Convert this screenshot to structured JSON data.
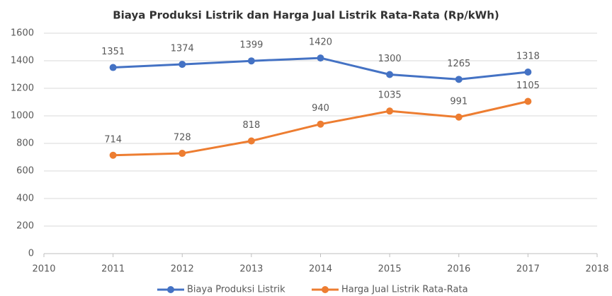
{
  "chart_data": {
    "type": "line",
    "title": "Biaya Produksi Listrik dan Harga Jual Listrik Rata-Rata (Rp/kWh)",
    "x": [
      2011,
      2012,
      2013,
      2014,
      2015,
      2016,
      2017
    ],
    "series": [
      {
        "name": "Biaya Produksi Listrik",
        "color": "#4472c4",
        "values": [
          1351,
          1374,
          1399,
          1420,
          1300,
          1265,
          1318
        ]
      },
      {
        "name": "Harga Jual Listrik Rata-Rata",
        "color": "#ed7d31",
        "values": [
          714,
          728,
          818,
          940,
          1035,
          991,
          1105
        ]
      }
    ],
    "xlim": [
      2010,
      2018
    ],
    "xticks": [
      2010,
      2011,
      2012,
      2013,
      2014,
      2015,
      2016,
      2017,
      2018
    ],
    "ylim": [
      0,
      1600
    ],
    "yticks": [
      0,
      200,
      400,
      600,
      800,
      1000,
      1200,
      1400,
      1600
    ],
    "grid": true,
    "legend": "bottom"
  }
}
